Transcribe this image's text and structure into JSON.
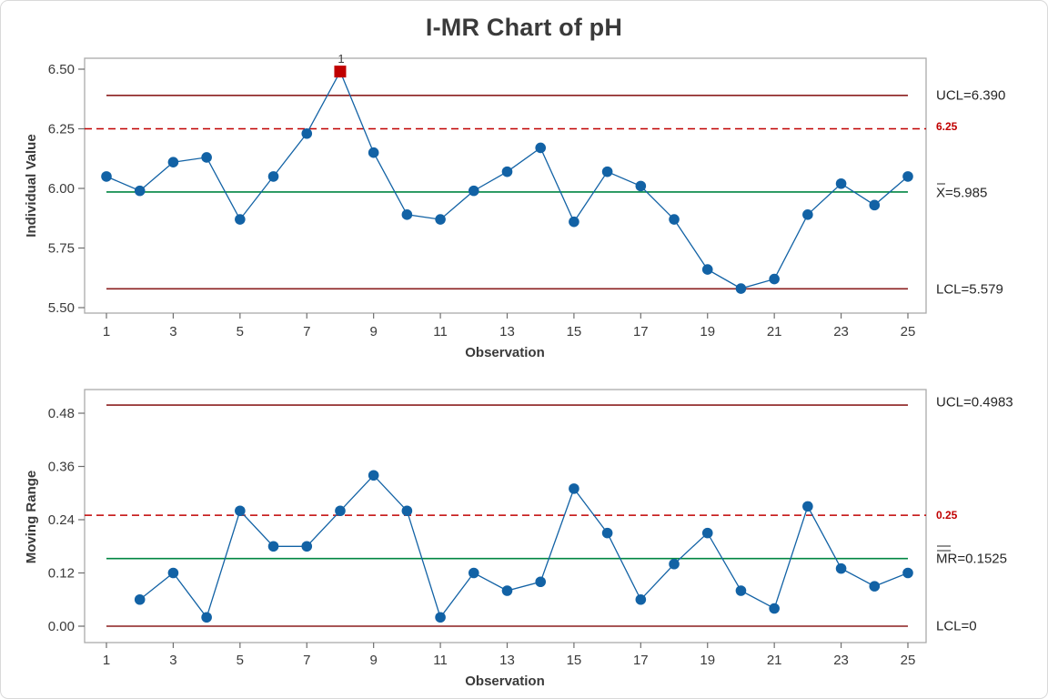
{
  "title": "I-MR Chart of pH",
  "colors": {
    "series_blue": "#1262a5",
    "center_line_green": "#008542",
    "control_limit_dark_red": "#8b1f1f",
    "spec_limit_red": "#c00000",
    "flag_marker_red": "#c00000",
    "axis_text": "#3a3a3a",
    "plot_border_gray": "#ababab"
  },
  "chart_data": [
    {
      "type": "line",
      "name": "individuals_chart",
      "ylabel": "Individual Value",
      "xlabel": "Observation",
      "x": [
        1,
        2,
        3,
        4,
        5,
        6,
        7,
        8,
        9,
        10,
        11,
        12,
        13,
        14,
        15,
        16,
        17,
        18,
        19,
        20,
        21,
        22,
        23,
        24,
        25
      ],
      "values": [
        6.05,
        5.99,
        6.11,
        6.13,
        5.87,
        6.05,
        6.23,
        6.49,
        6.15,
        5.89,
        5.87,
        5.99,
        6.07,
        6.17,
        5.86,
        6.07,
        6.01,
        5.87,
        5.66,
        5.58,
        5.62,
        5.89,
        6.02,
        5.93,
        6.05
      ],
      "ucl": 6.39,
      "ucl_label": "UCL=6.390",
      "center": 5.985,
      "center_label_prefix": "X",
      "center_label_rest": "=5.985",
      "lcl": 5.579,
      "lcl_label": "LCL=5.579",
      "spec_limit": 6.25,
      "spec_label": "6.25",
      "y_ticks": [
        6.5,
        6.25,
        6.0,
        5.75,
        5.5
      ],
      "y_tick_labels": [
        "6.50",
        "6.25",
        "6.00",
        "5.75",
        "5.50"
      ],
      "x_major_ticks": [
        1,
        3,
        5,
        7,
        9,
        11,
        13,
        15,
        17,
        19,
        21,
        23,
        25
      ],
      "x_tick_labels": [
        "1",
        "3",
        "5",
        "7",
        "9",
        "11",
        "13",
        "15",
        "17",
        "19",
        "21",
        "23",
        "25"
      ],
      "ylim": [
        5.48,
        6.55
      ],
      "grid": false,
      "flags": [
        {
          "obs": 8,
          "value": 6.49,
          "label": "1"
        }
      ]
    },
    {
      "type": "line",
      "name": "moving_range_chart",
      "ylabel": "Moving Range",
      "xlabel": "Observation",
      "x": [
        2,
        3,
        4,
        5,
        6,
        7,
        8,
        9,
        10,
        11,
        12,
        13,
        14,
        15,
        16,
        17,
        18,
        19,
        20,
        21,
        22,
        23,
        24,
        25
      ],
      "values": [
        0.06,
        0.12,
        0.02,
        0.26,
        0.18,
        0.18,
        0.26,
        0.34,
        0.26,
        0.02,
        0.12,
        0.08,
        0.1,
        0.31,
        0.21,
        0.06,
        0.14,
        0.21,
        0.08,
        0.04,
        0.27,
        0.13,
        0.09,
        0.12
      ],
      "ucl": 0.4983,
      "ucl_label": "UCL=0.4983",
      "center": 0.1525,
      "center_label_prefix": "MR",
      "center_label_rest": "=0.1525",
      "lcl": 0,
      "lcl_label": "LCL=0",
      "spec_limit": 0.25,
      "spec_label": "0.25",
      "y_ticks": [
        0.48,
        0.36,
        0.24,
        0.12,
        0.0
      ],
      "y_tick_labels": [
        "0.48",
        "0.36",
        "0.24",
        "0.12",
        "0.00"
      ],
      "x_major_ticks": [
        1,
        3,
        5,
        7,
        9,
        11,
        13,
        15,
        17,
        19,
        21,
        23,
        25
      ],
      "x_tick_labels": [
        "1",
        "3",
        "5",
        "7",
        "9",
        "11",
        "13",
        "15",
        "17",
        "19",
        "21",
        "23",
        "25"
      ],
      "ylim": [
        -0.04,
        0.53
      ],
      "grid": false,
      "flags": []
    }
  ]
}
